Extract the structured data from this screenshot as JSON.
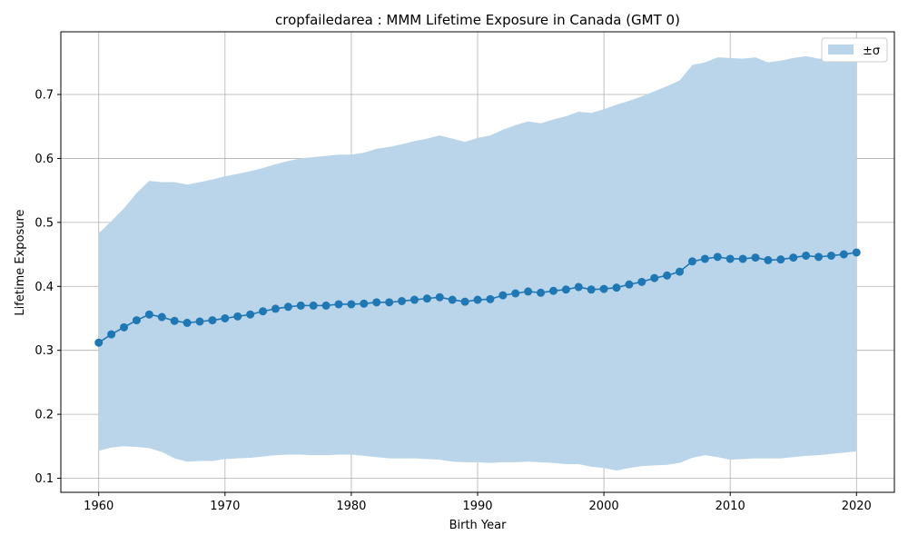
{
  "chart_data": {
    "type": "line",
    "title": "cropfailedarea : MMM Lifetime Exposure in Canada (GMT 0)",
    "xlabel": "Birth Year",
    "ylabel": "Lifetime Exposure",
    "xlim": [
      1957,
      2023
    ],
    "ylim": [
      0.078,
      0.798
    ],
    "xticks": [
      1960,
      1970,
      1980,
      1990,
      2000,
      2010,
      2020
    ],
    "yticks": [
      0.1,
      0.2,
      0.3,
      0.4,
      0.5,
      0.6,
      0.7
    ],
    "grid": true,
    "legend": {
      "position": "top-right",
      "entries": [
        "±σ"
      ]
    },
    "colors": {
      "line": "#1f77b4",
      "band": "#bad5e9",
      "grid": "#b0b0b0"
    },
    "x": [
      1960,
      1961,
      1962,
      1963,
      1964,
      1965,
      1966,
      1967,
      1968,
      1969,
      1970,
      1971,
      1972,
      1973,
      1974,
      1975,
      1976,
      1977,
      1978,
      1979,
      1980,
      1981,
      1982,
      1983,
      1984,
      1985,
      1986,
      1987,
      1988,
      1989,
      1990,
      1991,
      1992,
      1993,
      1994,
      1995,
      1996,
      1997,
      1998,
      1999,
      2000,
      2001,
      2002,
      2003,
      2004,
      2005,
      2006,
      2007,
      2008,
      2009,
      2010,
      2011,
      2012,
      2013,
      2014,
      2015,
      2016,
      2017,
      2018,
      2019,
      2020
    ],
    "series": [
      {
        "values": [
          0.312,
          0.325,
          0.336,
          0.347,
          0.356,
          0.352,
          0.346,
          0.343,
          0.345,
          0.347,
          0.35,
          0.353,
          0.356,
          0.361,
          0.365,
          0.368,
          0.37,
          0.37,
          0.37,
          0.372,
          0.372,
          0.373,
          0.375,
          0.375,
          0.377,
          0.379,
          0.381,
          0.383,
          0.379,
          0.376,
          0.379,
          0.38,
          0.386,
          0.389,
          0.392,
          0.39,
          0.393,
          0.395,
          0.399,
          0.395,
          0.396,
          0.398,
          0.403,
          0.407,
          0.413,
          0.417,
          0.423,
          0.439,
          0.443,
          0.446,
          0.443,
          0.443,
          0.445,
          0.441,
          0.442,
          0.445,
          0.448,
          0.446,
          0.448,
          0.45,
          0.453
        ]
      }
    ],
    "band": {
      "name": "±σ",
      "upper": [
        0.483,
        0.502,
        0.522,
        0.546,
        0.565,
        0.563,
        0.563,
        0.559,
        0.563,
        0.567,
        0.572,
        0.576,
        0.58,
        0.585,
        0.591,
        0.596,
        0.6,
        0.602,
        0.604,
        0.606,
        0.606,
        0.609,
        0.615,
        0.618,
        0.622,
        0.627,
        0.631,
        0.636,
        0.631,
        0.626,
        0.632,
        0.636,
        0.645,
        0.652,
        0.658,
        0.655,
        0.661,
        0.666,
        0.673,
        0.671,
        0.677,
        0.684,
        0.69,
        0.697,
        0.705,
        0.713,
        0.722,
        0.746,
        0.75,
        0.758,
        0.757,
        0.756,
        0.758,
        0.75,
        0.753,
        0.757,
        0.76,
        0.756,
        0.757,
        0.758,
        0.761
      ],
      "lower": [
        0.143,
        0.148,
        0.15,
        0.149,
        0.147,
        0.141,
        0.131,
        0.126,
        0.127,
        0.127,
        0.13,
        0.131,
        0.132,
        0.134,
        0.136,
        0.137,
        0.137,
        0.136,
        0.136,
        0.137,
        0.137,
        0.135,
        0.133,
        0.131,
        0.131,
        0.131,
        0.13,
        0.129,
        0.126,
        0.125,
        0.125,
        0.124,
        0.125,
        0.125,
        0.126,
        0.125,
        0.124,
        0.122,
        0.122,
        0.118,
        0.116,
        0.112,
        0.116,
        0.119,
        0.12,
        0.121,
        0.124,
        0.132,
        0.136,
        0.133,
        0.129,
        0.13,
        0.131,
        0.131,
        0.131,
        0.133,
        0.135,
        0.136,
        0.138,
        0.14,
        0.142
      ]
    }
  }
}
